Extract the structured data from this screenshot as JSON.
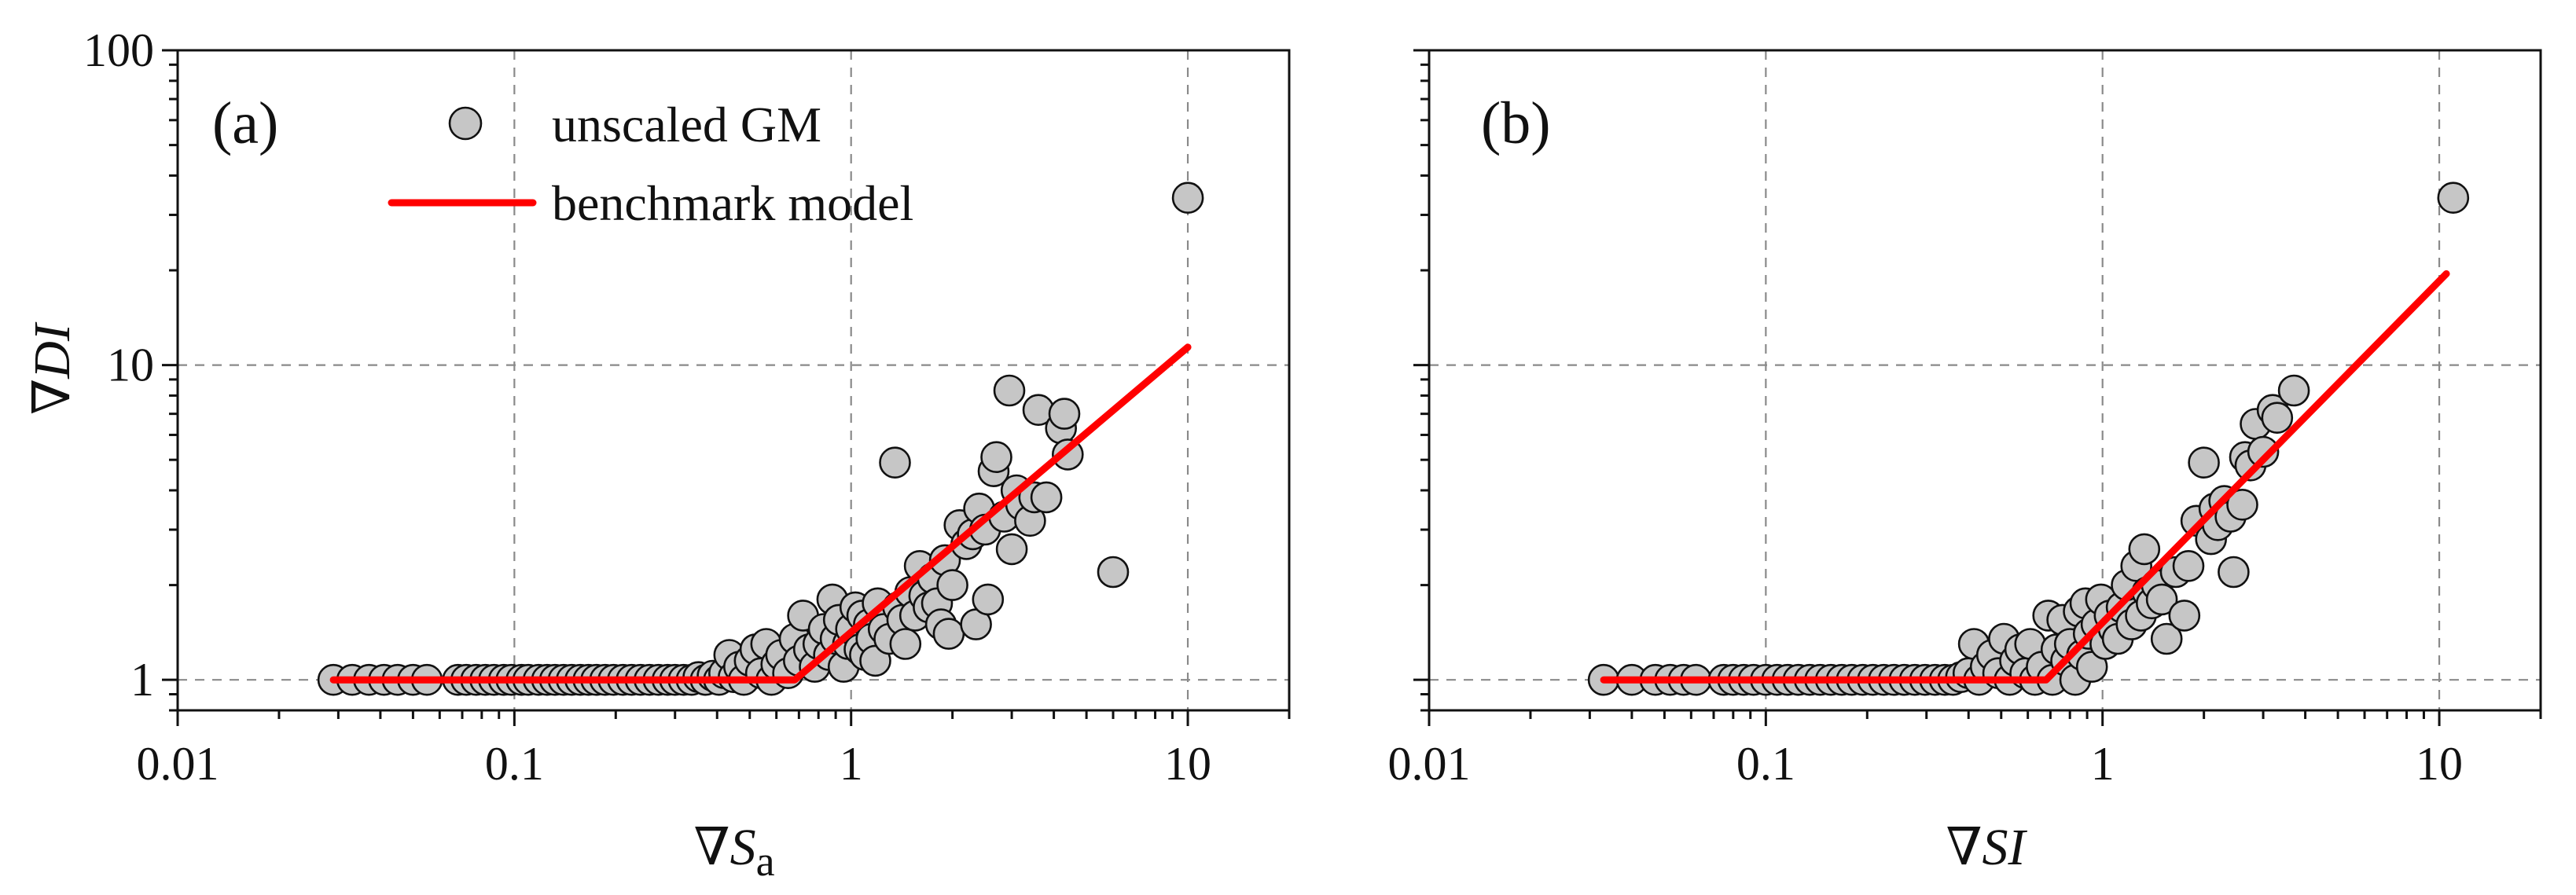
{
  "chart_data": [
    {
      "panel": "(a)",
      "type": "scatter",
      "xlabel_symbol": "∇",
      "xlabel_main": "S",
      "xlabel_sub": "a",
      "ylabel_symbol": "∇",
      "ylabel_main": "DI",
      "xscale": "log",
      "yscale": "log",
      "xlim": [
        0.01,
        20
      ],
      "ylim": [
        0.8,
        100
      ],
      "x_ticks": [
        {
          "value": 0.01,
          "label": "0.01"
        },
        {
          "value": 0.1,
          "label": "0.1"
        },
        {
          "value": 1,
          "label": "1"
        },
        {
          "value": 10,
          "label": "10"
        }
      ],
      "y_ticks": [
        {
          "value": 1,
          "label": "1"
        },
        {
          "value": 10,
          "label": "10"
        },
        {
          "value": 100,
          "label": "100"
        }
      ],
      "grid": true,
      "legend": {
        "placement": "top-left",
        "entries": [
          {
            "label": "unscaled GM",
            "kind": "marker"
          },
          {
            "label": "benchmark model",
            "kind": "line"
          }
        ]
      },
      "series": [
        {
          "name": "unscaled GM",
          "kind": "scatter",
          "color": "#c6c6c6",
          "points": [
            [
              0.029,
              1.0
            ],
            [
              0.033,
              1.0
            ],
            [
              0.037,
              1.0
            ],
            [
              0.041,
              1.0
            ],
            [
              0.045,
              1.0
            ],
            [
              0.05,
              1.0
            ],
            [
              0.055,
              1.0
            ],
            [
              0.068,
              1.0
            ],
            [
              0.072,
              1.0
            ],
            [
              0.077,
              1.0
            ],
            [
              0.082,
              1.0
            ],
            [
              0.087,
              1.0
            ],
            [
              0.093,
              1.0
            ],
            [
              0.098,
              1.0
            ],
            [
              0.105,
              1.0
            ],
            [
              0.11,
              1.0
            ],
            [
              0.118,
              1.0
            ],
            [
              0.125,
              1.0
            ],
            [
              0.132,
              1.0
            ],
            [
              0.14,
              1.0
            ],
            [
              0.148,
              1.0
            ],
            [
              0.157,
              1.0
            ],
            [
              0.166,
              1.0
            ],
            [
              0.175,
              1.0
            ],
            [
              0.186,
              1.0
            ],
            [
              0.197,
              1.0
            ],
            [
              0.21,
              1.0
            ],
            [
              0.223,
              1.0
            ],
            [
              0.237,
              1.0
            ],
            [
              0.252,
              1.0
            ],
            [
              0.268,
              1.0
            ],
            [
              0.285,
              1.0
            ],
            [
              0.3,
              1.0
            ],
            [
              0.318,
              1.0
            ],
            [
              0.336,
              1.0
            ],
            [
              0.352,
              1.02
            ],
            [
              0.37,
              1.0
            ],
            [
              0.388,
              1.03
            ],
            [
              0.405,
              1.0
            ],
            [
              0.42,
              1.05
            ],
            [
              0.435,
              1.2
            ],
            [
              0.448,
              1.02
            ],
            [
              0.465,
              1.1
            ],
            [
              0.48,
              1.0
            ],
            [
              0.5,
              1.15
            ],
            [
              0.52,
              1.25
            ],
            [
              0.54,
              1.05
            ],
            [
              0.56,
              1.3
            ],
            [
              0.58,
              1.0
            ],
            [
              0.6,
              1.12
            ],
            [
              0.62,
              1.2
            ],
            [
              0.65,
              1.05
            ],
            [
              0.68,
              1.35
            ],
            [
              0.7,
              1.15
            ],
            [
              0.72,
              1.6
            ],
            [
              0.75,
              1.25
            ],
            [
              0.78,
              1.1
            ],
            [
              0.8,
              1.3
            ],
            [
              0.83,
              1.45
            ],
            [
              0.86,
              1.2
            ],
            [
              0.88,
              1.8
            ],
            [
              0.9,
              1.35
            ],
            [
              0.92,
              1.55
            ],
            [
              0.95,
              1.1
            ],
            [
              0.98,
              1.3
            ],
            [
              1.0,
              1.45
            ],
            [
              1.03,
              1.7
            ],
            [
              1.06,
              1.25
            ],
            [
              1.08,
              1.6
            ],
            [
              1.1,
              1.2
            ],
            [
              1.13,
              1.5
            ],
            [
              1.15,
              1.35
            ],
            [
              1.18,
              1.15
            ],
            [
              1.2,
              1.75
            ],
            [
              1.25,
              1.45
            ],
            [
              1.3,
              1.35
            ],
            [
              1.35,
              4.9
            ],
            [
              1.38,
              1.7
            ],
            [
              1.42,
              1.55
            ],
            [
              1.45,
              1.3
            ],
            [
              1.5,
              1.9
            ],
            [
              1.55,
              1.6
            ],
            [
              1.6,
              2.3
            ],
            [
              1.65,
              1.85
            ],
            [
              1.7,
              1.7
            ],
            [
              1.75,
              2.1
            ],
            [
              1.8,
              1.75
            ],
            [
              1.85,
              1.5
            ],
            [
              1.9,
              2.4
            ],
            [
              1.95,
              1.4
            ],
            [
              2.0,
              2.0
            ],
            [
              2.1,
              3.1
            ],
            [
              2.2,
              2.7
            ],
            [
              2.3,
              2.9
            ],
            [
              2.35,
              1.5
            ],
            [
              2.4,
              3.5
            ],
            [
              2.5,
              3.0
            ],
            [
              2.55,
              1.8
            ],
            [
              2.65,
              4.6
            ],
            [
              2.7,
              5.1
            ],
            [
              2.85,
              3.3
            ],
            [
              2.95,
              8.3
            ],
            [
              3.0,
              2.6
            ],
            [
              3.1,
              4.0
            ],
            [
              3.2,
              3.6
            ],
            [
              3.4,
              3.2
            ],
            [
              3.5,
              3.8
            ],
            [
              3.6,
              7.2
            ],
            [
              3.8,
              3.8
            ],
            [
              4.2,
              6.3
            ],
            [
              4.3,
              7.0
            ],
            [
              4.4,
              5.2
            ],
            [
              6.0,
              2.2
            ],
            [
              10.0,
              34.0
            ]
          ]
        },
        {
          "name": "benchmark model",
          "kind": "line",
          "color": "#ff0000",
          "points": [
            [
              0.029,
              1.0
            ],
            [
              0.68,
              1.0
            ],
            [
              10.0,
              11.4
            ]
          ]
        }
      ]
    },
    {
      "panel": "(b)",
      "type": "scatter",
      "xlabel_symbol": "∇",
      "xlabel_main": "SI",
      "xscale": "log",
      "yscale": "log",
      "xlim": [
        0.01,
        20
      ],
      "ylim": [
        0.8,
        100
      ],
      "x_ticks": [
        {
          "value": 0.01,
          "label": "0.01"
        },
        {
          "value": 0.1,
          "label": "0.1"
        },
        {
          "value": 1,
          "label": "1"
        },
        {
          "value": 10,
          "label": "10"
        }
      ],
      "grid": true,
      "series": [
        {
          "name": "unscaled GM",
          "kind": "scatter",
          "color": "#c6c6c6",
          "points": [
            [
              0.033,
              1.0
            ],
            [
              0.04,
              1.0
            ],
            [
              0.047,
              1.0
            ],
            [
              0.052,
              1.0
            ],
            [
              0.057,
              1.0
            ],
            [
              0.062,
              1.0
            ],
            [
              0.075,
              1.0
            ],
            [
              0.08,
              1.0
            ],
            [
              0.086,
              1.0
            ],
            [
              0.092,
              1.0
            ],
            [
              0.1,
              1.0
            ],
            [
              0.108,
              1.0
            ],
            [
              0.116,
              1.0
            ],
            [
              0.125,
              1.0
            ],
            [
              0.135,
              1.0
            ],
            [
              0.145,
              1.0
            ],
            [
              0.156,
              1.0
            ],
            [
              0.168,
              1.0
            ],
            [
              0.18,
              1.0
            ],
            [
              0.194,
              1.0
            ],
            [
              0.208,
              1.0
            ],
            [
              0.224,
              1.0
            ],
            [
              0.24,
              1.0
            ],
            [
              0.258,
              1.0
            ],
            [
              0.277,
              1.0
            ],
            [
              0.297,
              1.0
            ],
            [
              0.318,
              1.0
            ],
            [
              0.34,
              1.0
            ],
            [
              0.36,
              1.0
            ],
            [
              0.38,
              1.02
            ],
            [
              0.4,
              1.05
            ],
            [
              0.415,
              1.3
            ],
            [
              0.43,
              1.0
            ],
            [
              0.45,
              1.1
            ],
            [
              0.47,
              1.2
            ],
            [
              0.49,
              1.05
            ],
            [
              0.51,
              1.35
            ],
            [
              0.53,
              1.0
            ],
            [
              0.55,
              1.15
            ],
            [
              0.57,
              1.25
            ],
            [
              0.59,
              1.05
            ],
            [
              0.61,
              1.3
            ],
            [
              0.63,
              1.0
            ],
            [
              0.66,
              1.1
            ],
            [
              0.69,
              1.6
            ],
            [
              0.71,
              1.0
            ],
            [
              0.73,
              1.25
            ],
            [
              0.76,
              1.55
            ],
            [
              0.78,
              1.15
            ],
            [
              0.8,
              1.3
            ],
            [
              0.83,
              1.0
            ],
            [
              0.85,
              1.65
            ],
            [
              0.87,
              1.2
            ],
            [
              0.89,
              1.75
            ],
            [
              0.91,
              1.4
            ],
            [
              0.93,
              1.1
            ],
            [
              0.96,
              1.5
            ],
            [
              0.99,
              1.8
            ],
            [
              1.02,
              1.3
            ],
            [
              1.05,
              1.6
            ],
            [
              1.08,
              1.45
            ],
            [
              1.11,
              1.35
            ],
            [
              1.14,
              1.7
            ],
            [
              1.18,
              2.0
            ],
            [
              1.22,
              1.5
            ],
            [
              1.26,
              2.3
            ],
            [
              1.3,
              1.6
            ],
            [
              1.33,
              2.6
            ],
            [
              1.36,
              1.9
            ],
            [
              1.4,
              1.75
            ],
            [
              1.45,
              2.0
            ],
            [
              1.5,
              1.8
            ],
            [
              1.55,
              1.35
            ],
            [
              1.65,
              2.2
            ],
            [
              1.75,
              1.6
            ],
            [
              1.8,
              2.3
            ],
            [
              1.9,
              3.2
            ],
            [
              2.0,
              4.9
            ],
            [
              2.1,
              2.8
            ],
            [
              2.15,
              3.5
            ],
            [
              2.2,
              3.1
            ],
            [
              2.3,
              3.7
            ],
            [
              2.4,
              3.3
            ],
            [
              2.45,
              2.2
            ],
            [
              2.6,
              3.6
            ],
            [
              2.65,
              5.1
            ],
            [
              2.75,
              4.8
            ],
            [
              2.85,
              6.5
            ],
            [
              3.0,
              5.3
            ],
            [
              3.2,
              7.2
            ],
            [
              3.3,
              6.8
            ],
            [
              3.7,
              8.3
            ],
            [
              11.0,
              34.0
            ]
          ]
        },
        {
          "name": "benchmark model",
          "kind": "line",
          "color": "#ff0000",
          "points": [
            [
              0.033,
              1.0
            ],
            [
              0.68,
              1.0
            ],
            [
              10.5,
              19.5
            ]
          ]
        }
      ]
    }
  ]
}
